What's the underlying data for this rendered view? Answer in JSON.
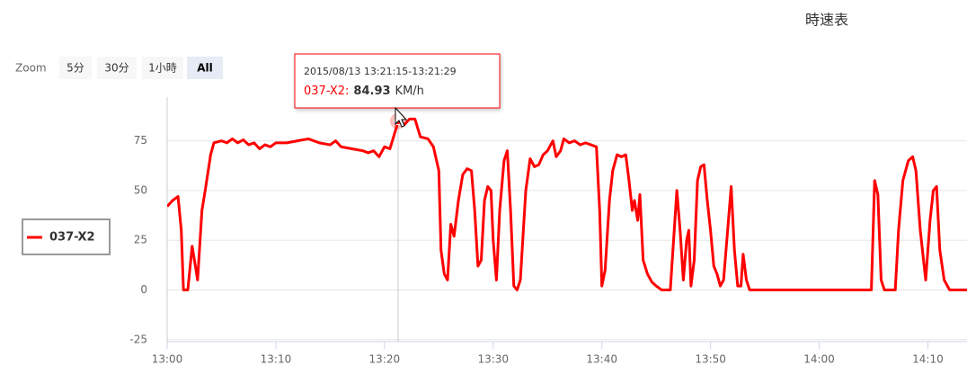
{
  "chart_data": {
    "type": "line",
    "title": "時速表",
    "range_selector": {
      "label": "Zoom",
      "buttons": [
        "5分",
        "30分",
        "1小時",
        "All"
      ],
      "selected": 3
    },
    "x": [
      0,
      0.5,
      1,
      1.3,
      1.5,
      1.9,
      2.3,
      2.6,
      2.8,
      3.2,
      3.5,
      4,
      4.3,
      5,
      5.5,
      6,
      6.5,
      7,
      7.5,
      8,
      8.5,
      9,
      9.5,
      10,
      11,
      12,
      13,
      14,
      15,
      15.5,
      16,
      17,
      18,
      18.5,
      19,
      19.5,
      20,
      20.5,
      21,
      21.25,
      21.8,
      22.3,
      22.8,
      23.3,
      24,
      24.5,
      25,
      25.2,
      25.5,
      25.8,
      26.1,
      26.4,
      26.8,
      27.2,
      27.6,
      28,
      28.3,
      28.6,
      28.9,
      29.2,
      29.5,
      29.8,
      30,
      30.3,
      30.6,
      31,
      31.3,
      31.6,
      31.9,
      32.2,
      32.5,
      33,
      33.4,
      33.8,
      34.2,
      34.6,
      35,
      35.5,
      35.8,
      36.2,
      36.5,
      37,
      37.5,
      38,
      38.5,
      39,
      39.5,
      39.8,
      40,
      40.3,
      40.7,
      41,
      41.4,
      41.8,
      42.2,
      42.5,
      42.8,
      43,
      43.3,
      43.5,
      43.8,
      44.2,
      44.6,
      45,
      45.5,
      46.3,
      46.6,
      46.9,
      47.2,
      47.5,
      47.8,
      48,
      48.2,
      48.5,
      48.8,
      49.1,
      49.4,
      49.7,
      50,
      50.3,
      50.6,
      50.9,
      51.2,
      51.5,
      51.9,
      52.2,
      52.5,
      52.8,
      53,
      53.3,
      53.6,
      64.8,
      65.1,
      65.4,
      65.7,
      66,
      67,
      67.3,
      67.7,
      68.2,
      68.6,
      68.9,
      69.3,
      69.8,
      70.2,
      70.5,
      70.8,
      71.1,
      71.5,
      72,
      73.6
    ],
    "series": [
      {
        "name": "037-X2",
        "color": "#ff0000",
        "values": [
          42,
          45,
          47,
          30,
          0,
          0,
          22,
          12,
          5,
          40,
          50,
          68,
          74,
          75,
          74,
          76,
          74,
          75.5,
          73,
          74,
          71,
          73,
          72,
          74,
          74,
          75,
          76,
          74,
          73,
          75,
          72,
          71,
          70,
          69,
          70,
          67,
          72,
          71,
          80,
          84.93,
          83,
          86,
          86,
          77,
          76,
          72,
          60,
          20,
          8,
          5,
          33,
          27,
          45,
          58,
          61,
          60,
          40,
          12,
          15,
          45,
          52,
          50,
          25,
          5,
          40,
          65,
          70,
          40,
          2,
          0,
          5,
          50,
          66,
          62,
          63,
          68,
          70,
          75,
          67,
          70,
          76,
          74,
          75,
          73,
          74,
          73,
          72,
          40,
          2,
          10,
          45,
          60,
          68,
          67,
          68,
          55,
          40,
          45,
          35,
          48,
          15,
          8,
          4,
          2,
          0,
          0,
          25,
          50,
          30,
          5,
          25,
          30,
          2,
          15,
          55,
          62,
          63,
          45,
          30,
          12,
          8,
          2,
          5,
          25,
          52,
          20,
          2,
          2,
          18,
          5,
          0,
          0,
          55,
          48,
          5,
          0,
          0,
          30,
          55,
          65,
          67,
          60,
          30,
          5,
          35,
          50,
          52,
          20,
          5,
          0,
          0
        ]
      }
    ],
    "xlim": [
      0,
      73.6
    ],
    "xticks": [
      {
        "value": 0,
        "label": "13:00"
      },
      {
        "value": 10,
        "label": "13:10"
      },
      {
        "value": 20,
        "label": "13:20"
      },
      {
        "value": 30,
        "label": "13:30"
      },
      {
        "value": 40,
        "label": "13:40"
      },
      {
        "value": 50,
        "label": "13:50"
      },
      {
        "value": 60,
        "label": "14:00"
      },
      {
        "value": 70,
        "label": "14:10"
      }
    ],
    "ylim": [
      -26,
      97
    ],
    "yticks": [
      -25,
      0,
      25,
      50,
      75
    ],
    "grid": true,
    "legend": "left",
    "tooltip": {
      "header": "2015/08/13 13:21:15-13:21:29",
      "label": "037-X2:",
      "value": 84.93,
      "unit": "KM/h"
    }
  }
}
